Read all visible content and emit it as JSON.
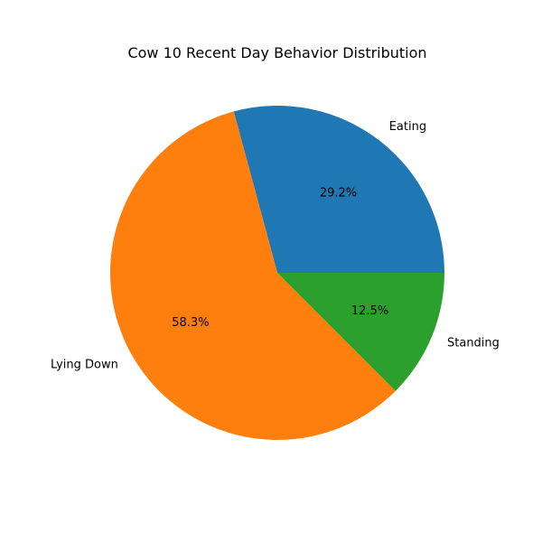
{
  "chart_data": {
    "type": "pie",
    "title": "Cow 10 Recent Day Behavior Distribution",
    "categories": [
      "Eating",
      "Lying Down",
      "Standing"
    ],
    "values": [
      29.2,
      58.3,
      12.5
    ],
    "percent_labels": [
      "29.2%",
      "58.3%",
      "12.5%"
    ],
    "colors": [
      "#1f77b4",
      "#ff7f0e",
      "#2ca02c"
    ],
    "start_angle": 0,
    "direction": "counterclockwise",
    "legend": "none"
  }
}
